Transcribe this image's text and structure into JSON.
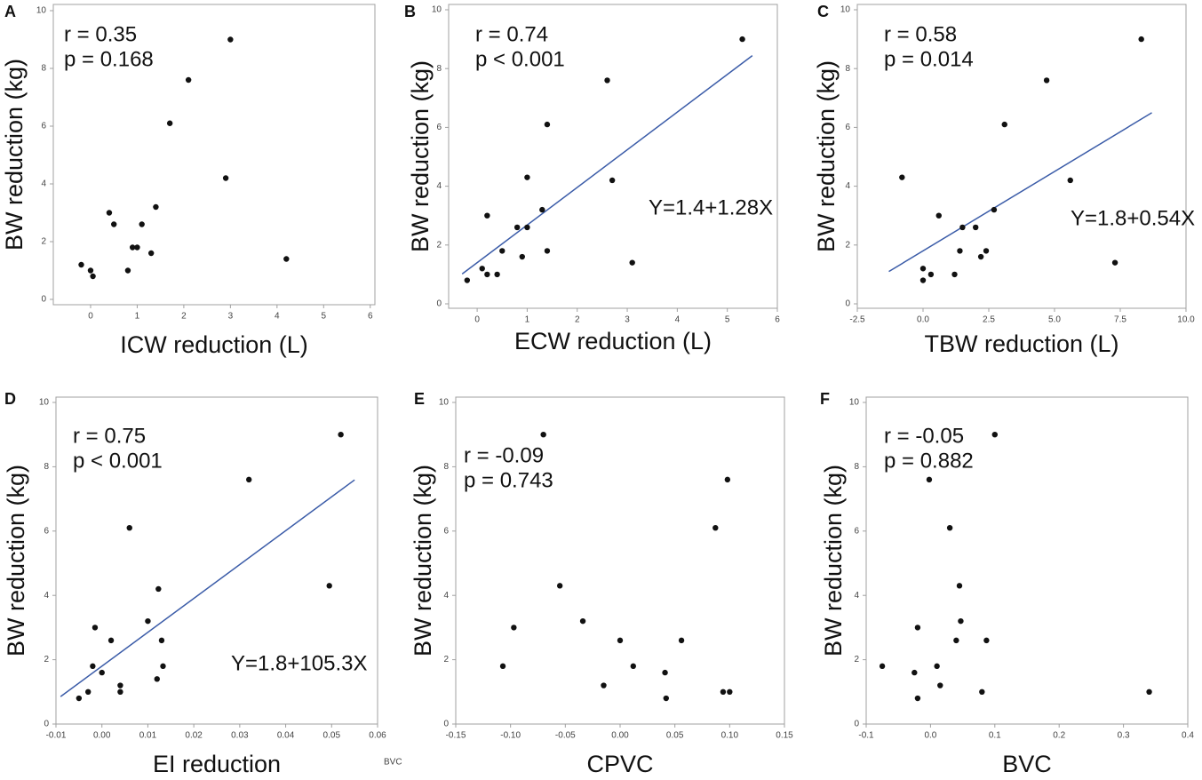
{
  "chart_data": [
    {
      "type": "scatter",
      "panel": "A",
      "xlabel": "ICW reduction (L)",
      "ylabel": "BW reduction (kg)",
      "annotations": [
        "r = 0.35",
        "p = 0.168"
      ],
      "x": [
        -0.2,
        0,
        0.05,
        0.4,
        0.5,
        0.8,
        0.9,
        1.0,
        1.1,
        1.3,
        1.4,
        1.7,
        2.1,
        2.9,
        3.0,
        4.2
      ],
      "y": [
        1.2,
        1.0,
        0.8,
        3.0,
        2.6,
        1.0,
        1.8,
        1.8,
        2.6,
        1.6,
        3.2,
        6.1,
        7.6,
        4.2,
        9.0,
        1.4
      ],
      "color": "#111111",
      "xlim": [
        -0.8,
        6.1
      ],
      "ylim": [
        0,
        10
      ],
      "xticks": [
        0,
        1,
        2,
        3,
        4,
        5,
        6
      ],
      "yticks": [
        0,
        2,
        4,
        6,
        8,
        10
      ]
    },
    {
      "type": "scatter",
      "panel": "B",
      "xlabel": "ECW reduction (L)",
      "ylabel": "BW reduction (kg)",
      "annotations": [
        "r = 0.74",
        "p < 0.001"
      ],
      "x": [
        -0.2,
        0.1,
        0.2,
        0.2,
        0.4,
        0.5,
        0.8,
        0.9,
        1.0,
        1.0,
        1.3,
        1.4,
        1.4,
        2.6,
        2.7,
        3.1,
        5.3
      ],
      "y": [
        0.8,
        1.2,
        1.0,
        3.0,
        1.0,
        1.8,
        2.6,
        1.6,
        4.3,
        2.6,
        3.2,
        6.1,
        1.8,
        7.6,
        4.2,
        1.4,
        9.0
      ],
      "color": "#111111",
      "xlim": [
        -0.57,
        6
      ],
      "ylim": [
        0,
        10
      ],
      "xticks": [
        0,
        1,
        2,
        3,
        4,
        5,
        6
      ],
      "yticks": [
        0,
        2,
        4,
        6,
        8,
        10
      ],
      "fit": {
        "intercept": 1.4,
        "slope": 1.28,
        "label": "Y=1.4+1.28X",
        "xrange": [
          -0.3,
          5.5
        ],
        "color": "#3b5ca8"
      }
    },
    {
      "type": "scatter",
      "panel": "C",
      "xlabel": "TBW reduction (L)",
      "ylabel": "BW reduction (kg)",
      "annotations": [
        "r = 0.58",
        "p = 0.014"
      ],
      "x": [
        -0.8,
        0,
        0,
        0.3,
        0.6,
        1.2,
        1.4,
        1.5,
        2.0,
        2.2,
        2.4,
        2.7,
        3.1,
        4.7,
        5.6,
        7.3,
        8.3
      ],
      "y": [
        4.3,
        1.2,
        0.8,
        1.0,
        3.0,
        1.0,
        1.8,
        2.6,
        2.6,
        1.6,
        1.8,
        3.2,
        6.1,
        7.6,
        4.2,
        1.4,
        9.0
      ],
      "color": "#111111",
      "xlim": [
        -2.5,
        10
      ],
      "ylim": [
        0,
        10
      ],
      "xticks": [
        -2.5,
        {
          "value": 0,
          "label": "0.0"
        },
        2.5,
        {
          "value": 5,
          "label": "5.0"
        },
        7.5,
        {
          "value": 10,
          "label": "10.0"
        }
      ],
      "yticks": [
        0,
        2,
        4,
        6,
        8,
        10
      ],
      "fit": {
        "intercept": 1.8,
        "slope": 0.54,
        "label": "Y=1.8+0.54X",
        "xrange": [
          -1.3,
          8.7
        ],
        "color": "#3b5ca8"
      }
    },
    {
      "type": "scatter",
      "panel": "D",
      "xlabel": "EI reduction",
      "ylabel": "BW reduction (kg)",
      "annotations": [
        "r = 0.75",
        "p < 0.001"
      ],
      "note": "BVC",
      "x": [
        -0.005,
        -0.003,
        -0.002,
        -0.0015,
        0,
        0.002,
        0.004,
        0.004,
        0.006,
        0.01,
        0.012,
        0.0123,
        0.013,
        0.0133,
        0.032,
        0.0495,
        0.052
      ],
      "y": [
        0.8,
        1.0,
        1.8,
        3.0,
        1.6,
        2.6,
        1.2,
        1.0,
        6.1,
        3.2,
        1.4,
        4.2,
        2.6,
        1.8,
        7.6,
        4.3,
        9.0
      ],
      "color": "#111111",
      "xlim": [
        -0.01,
        0.06
      ],
      "ylim": [
        0,
        10
      ],
      "xticks": [
        -0.01,
        {
          "value": 0,
          "label": "0.00"
        },
        0.01,
        0.02,
        0.03,
        0.04,
        0.05,
        0.06
      ],
      "yticks": [
        0,
        2,
        4,
        6,
        8,
        10
      ],
      "fit": {
        "intercept": 1.8,
        "slope": 105.3,
        "label": "Y=1.8+105.3X",
        "xrange": [
          -0.009,
          0.055
        ],
        "color": "#3b5ca8"
      }
    },
    {
      "type": "scatter",
      "panel": "E",
      "xlabel": "CPVC",
      "ylabel": "BW reduction (kg)",
      "annotations": [
        "r = -0.09",
        "p = 0.743"
      ],
      "x": [
        -0.107,
        -0.097,
        -0.07,
        -0.055,
        -0.034,
        -0.015,
        0,
        0.012,
        0.041,
        0.042,
        0.056,
        0.087,
        0.094,
        0.098,
        0.1
      ],
      "y": [
        1.8,
        3.0,
        9.0,
        4.3,
        3.2,
        1.2,
        2.6,
        1.8,
        1.6,
        0.8,
        2.6,
        6.1,
        1.0,
        7.6,
        1.0
      ],
      "color": "#111111",
      "xlim": [
        -0.15,
        0.15
      ],
      "ylim": [
        0,
        10
      ],
      "xticks": [
        -0.15,
        {
          "value": -0.1,
          "label": "-0.10"
        },
        -0.05,
        {
          "value": 0,
          "label": "0.00"
        },
        0.05,
        {
          "value": 0.1,
          "label": "0.10"
        },
        0.15
      ],
      "yticks": [
        0,
        2,
        4,
        6,
        8,
        10
      ]
    },
    {
      "type": "scatter",
      "panel": "F",
      "xlabel": "BVC",
      "ylabel": "BW reduction (kg)",
      "annotations": [
        "r = -0.05",
        "p = 0.882"
      ],
      "x": [
        -0.075,
        -0.025,
        -0.02,
        -0.02,
        -0.002,
        0.01,
        0.015,
        0.03,
        0.04,
        0.045,
        0.047,
        0.08,
        0.087,
        0.1,
        0.34
      ],
      "y": [
        1.8,
        1.6,
        3.0,
        0.8,
        7.6,
        1.8,
        1.2,
        6.1,
        2.6,
        4.3,
        3.2,
        1.0,
        2.6,
        9.0,
        1.0
      ],
      "color": "#111111",
      "xlim": [
        -0.1,
        0.4
      ],
      "ylim": [
        0,
        10
      ],
      "xticks": [
        -0.1,
        {
          "value": 0,
          "label": "0.0"
        },
        0.1,
        0.2,
        0.3,
        0.4
      ],
      "yticks": [
        0,
        2,
        4,
        6,
        8,
        10
      ]
    }
  ]
}
